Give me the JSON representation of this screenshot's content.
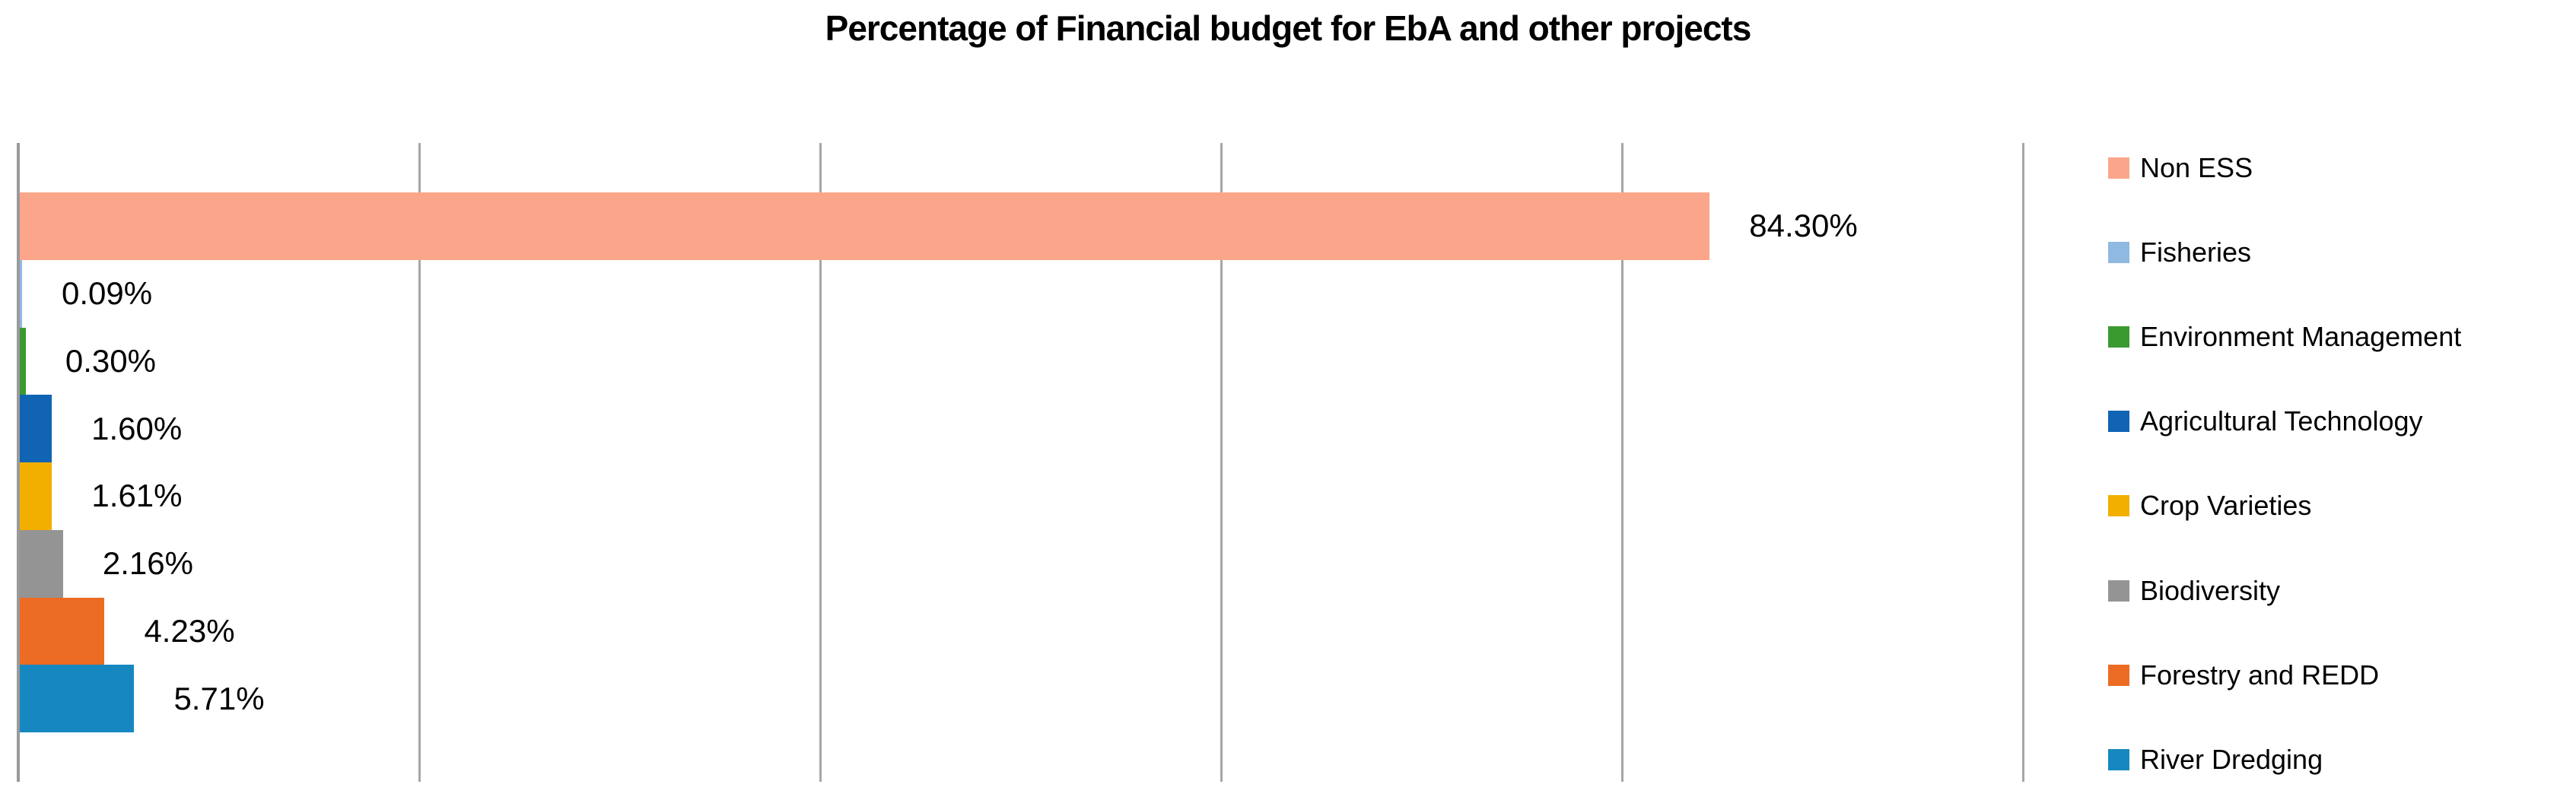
{
  "title": "Percentage of Financial budget for EbA and other projects",
  "chart_data": {
    "type": "bar",
    "orientation": "horizontal",
    "title": "Percentage of Financial budget for EbA and other projects",
    "xlabel": "",
    "ylabel": "",
    "xlim": [
      0,
      100
    ],
    "gridline_interval": 20,
    "grid": "vertical-only",
    "legend_position": "right",
    "axis_color": "#9a9a9a",
    "gridline_color": "#a6a6a6",
    "categories": [
      "Non ESS",
      "Fisheries",
      "Environment Management",
      "Agricultural Technology",
      "Crop Varieties",
      "Biodiversity",
      "Forestry and REDD",
      "River Dredging"
    ],
    "series": [
      {
        "name": "Non ESS",
        "value": 84.3,
        "label": "84.30%",
        "color": "#FBA68A"
      },
      {
        "name": "Fisheries",
        "value": 0.09,
        "label": "0.09%",
        "color": "#8FB9E0"
      },
      {
        "name": "Environment Management",
        "value": 0.3,
        "label": "0.30%",
        "color": "#3A9A30"
      },
      {
        "name": "Agricultural Technology",
        "value": 1.6,
        "label": "1.60%",
        "color": "#1164B4"
      },
      {
        "name": "Crop Varieties",
        "value": 1.61,
        "label": "1.61%",
        "color": "#F2AF00"
      },
      {
        "name": "Biodiversity",
        "value": 2.16,
        "label": "2.16%",
        "color": "#949494"
      },
      {
        "name": "Forestry and REDD",
        "value": 4.23,
        "label": "4.23%",
        "color": "#EC6C23"
      },
      {
        "name": "River Dredging",
        "value": 5.71,
        "label": "5.71%",
        "color": "#1788BF"
      }
    ]
  }
}
